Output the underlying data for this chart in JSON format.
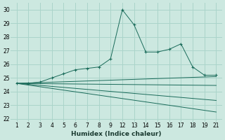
{
  "xlabel": "Humidex (Indice chaleur)",
  "bg_color": "#cce8e0",
  "grid_color": "#aad4ca",
  "line_color": "#1a6b5a",
  "series_main": {
    "x": [
      1,
      2,
      3,
      4,
      5,
      6,
      7,
      8,
      9,
      12,
      13,
      14,
      15,
      16,
      17,
      18,
      19,
      21
    ],
    "y": [
      24.6,
      24.6,
      24.7,
      25.0,
      25.3,
      25.6,
      25.7,
      25.8,
      26.4,
      30.0,
      28.9,
      26.9,
      26.9,
      27.1,
      27.5,
      25.8,
      25.2,
      25.2
    ]
  },
  "series_flat": [
    {
      "x": [
        1,
        21
      ],
      "y": [
        24.6,
        25.1
      ]
    },
    {
      "x": [
        1,
        21
      ],
      "y": [
        24.6,
        24.45
      ]
    },
    {
      "x": [
        1,
        21
      ],
      "y": [
        24.6,
        23.35
      ]
    },
    {
      "x": [
        1,
        21
      ],
      "y": [
        24.6,
        22.5
      ]
    }
  ],
  "xtick_labels": [
    "1",
    "2",
    "3",
    "4",
    "5",
    "6",
    "7",
    "8",
    "9",
    "12",
    "13",
    "14",
    "15",
    "16",
    "17",
    "18",
    "19",
    "21"
  ],
  "xtick_positions": [
    1,
    2,
    3,
    4,
    5,
    6,
    7,
    8,
    9,
    10,
    11,
    12,
    13,
    14,
    15,
    16,
    17,
    18
  ],
  "xlim": [
    0.5,
    18.5
  ],
  "ylim": [
    21.8,
    30.5
  ],
  "yticks": [
    22,
    23,
    24,
    25,
    26,
    27,
    28,
    29,
    30
  ]
}
